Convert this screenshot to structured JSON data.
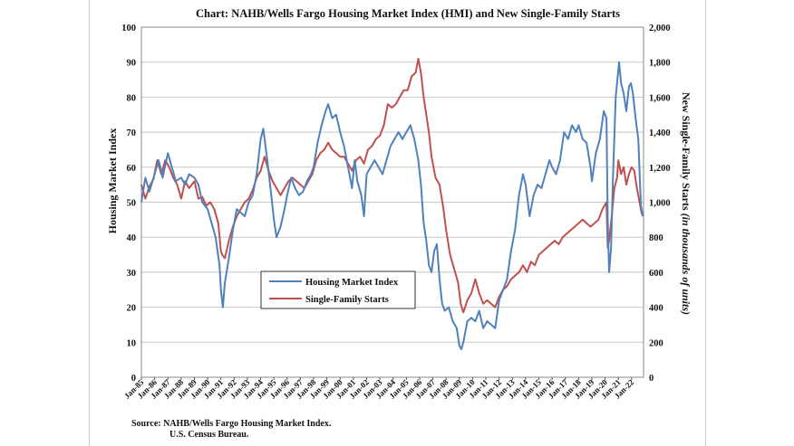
{
  "chart_data": {
    "type": "line",
    "title": "Chart:  NAHB/Wells Fargo Housing Market Index (HMI) and New Single-Family Starts",
    "ylabel_left": "Housing Market Index",
    "ylabel_right_main": "New Single-Family Starts ",
    "ylabel_right_italic": "(in thousands of units)",
    "ylim_left": [
      0,
      100
    ],
    "ylim_right": [
      0,
      2000
    ],
    "y_ticks_left": [
      "0",
      "10",
      "20",
      "30",
      "40",
      "50",
      "60",
      "70",
      "80",
      "90",
      "100"
    ],
    "y_ticks_right": [
      "0",
      "200",
      "400",
      "600",
      "800",
      "1,000",
      "1,200",
      "1,400",
      "1,600",
      "1,800",
      "2,000"
    ],
    "x_range": [
      1985,
      2022.9
    ],
    "x_ticks": [
      "Jan-85",
      "Jan-86",
      "Jan-87",
      "Jan-88",
      "Jan-89",
      "Jan-90",
      "Jan-91",
      "Jan-92",
      "Jan-93",
      "Jan-94",
      "Jan-95",
      "Jan-96",
      "Jan-97",
      "Jan-98",
      "Jan-99",
      "Jan-00",
      "Jan-01",
      "Jan-02",
      "Jan-03",
      "Jan-04",
      "Jan-05",
      "Jan-06",
      "Jan-07",
      "Jan-08",
      "Jan-09",
      "Jan-10",
      "Jan-11",
      "Jan-12",
      "Jan-13",
      "Jan-14",
      "Jan-15",
      "Jan-16",
      "Jan-17",
      "Jan-18",
      "Jan-19",
      "Jan-20",
      "Jan-21",
      "Jan-22"
    ],
    "grid": true,
    "legend_placement": "center",
    "series": [
      {
        "name": "Housing Market Index",
        "axis": "left",
        "color": "#4f81bd",
        "points": [
          [
            1985.0,
            50
          ],
          [
            1985.3,
            57
          ],
          [
            1985.6,
            53
          ],
          [
            1986.0,
            58
          ],
          [
            1986.3,
            62
          ],
          [
            1986.6,
            57
          ],
          [
            1987.0,
            64
          ],
          [
            1987.3,
            60
          ],
          [
            1987.6,
            56
          ],
          [
            1988.0,
            57
          ],
          [
            1988.3,
            55
          ],
          [
            1988.6,
            58
          ],
          [
            1989.0,
            57
          ],
          [
            1989.3,
            55
          ],
          [
            1989.6,
            50
          ],
          [
            1990.0,
            48
          ],
          [
            1990.3,
            44
          ],
          [
            1990.6,
            40
          ],
          [
            1990.9,
            32
          ],
          [
            1991.0,
            25
          ],
          [
            1991.15,
            20
          ],
          [
            1991.3,
            27
          ],
          [
            1991.6,
            34
          ],
          [
            1991.9,
            42
          ],
          [
            1992.2,
            48
          ],
          [
            1992.5,
            47
          ],
          [
            1992.8,
            46
          ],
          [
            1993.1,
            50
          ],
          [
            1993.4,
            52
          ],
          [
            1993.7,
            58
          ],
          [
            1994.0,
            68
          ],
          [
            1994.2,
            71
          ],
          [
            1994.5,
            62
          ],
          [
            1994.8,
            52
          ],
          [
            1995.0,
            45
          ],
          [
            1995.2,
            40
          ],
          [
            1995.5,
            43
          ],
          [
            1995.8,
            48
          ],
          [
            1996.0,
            52
          ],
          [
            1996.3,
            57
          ],
          [
            1996.6,
            54
          ],
          [
            1996.9,
            52
          ],
          [
            1997.2,
            53
          ],
          [
            1997.5,
            56
          ],
          [
            1997.8,
            58
          ],
          [
            1998.0,
            60
          ],
          [
            1998.3,
            67
          ],
          [
            1998.6,
            72
          ],
          [
            1998.9,
            76
          ],
          [
            1999.1,
            78
          ],
          [
            1999.4,
            74
          ],
          [
            1999.7,
            75
          ],
          [
            2000.0,
            70
          ],
          [
            2000.3,
            66
          ],
          [
            2000.6,
            60
          ],
          [
            2000.9,
            54
          ],
          [
            2001.1,
            62
          ],
          [
            2001.3,
            56
          ],
          [
            2001.6,
            52
          ],
          [
            2001.8,
            46
          ],
          [
            2002.0,
            58
          ],
          [
            2002.3,
            60
          ],
          [
            2002.6,
            62
          ],
          [
            2002.9,
            60
          ],
          [
            2003.2,
            58
          ],
          [
            2003.5,
            62
          ],
          [
            2003.8,
            66
          ],
          [
            2004.1,
            68
          ],
          [
            2004.4,
            70
          ],
          [
            2004.7,
            68
          ],
          [
            2005.0,
            70
          ],
          [
            2005.3,
            72
          ],
          [
            2005.6,
            68
          ],
          [
            2005.9,
            62
          ],
          [
            2006.1,
            55
          ],
          [
            2006.3,
            44
          ],
          [
            2006.5,
            39
          ],
          [
            2006.7,
            32
          ],
          [
            2006.9,
            30
          ],
          [
            2007.1,
            36
          ],
          [
            2007.3,
            38
          ],
          [
            2007.5,
            28
          ],
          [
            2007.7,
            21
          ],
          [
            2007.9,
            19
          ],
          [
            2008.2,
            20
          ],
          [
            2008.5,
            16
          ],
          [
            2008.8,
            14
          ],
          [
            2009.0,
            9
          ],
          [
            2009.15,
            8
          ],
          [
            2009.3,
            10
          ],
          [
            2009.6,
            16
          ],
          [
            2009.9,
            17
          ],
          [
            2010.2,
            16
          ],
          [
            2010.5,
            19
          ],
          [
            2010.8,
            14
          ],
          [
            2011.1,
            16
          ],
          [
            2011.4,
            15
          ],
          [
            2011.7,
            14
          ],
          [
            2012.0,
            22
          ],
          [
            2012.3,
            25
          ],
          [
            2012.6,
            28
          ],
          [
            2012.9,
            36
          ],
          [
            2013.2,
            42
          ],
          [
            2013.5,
            52
          ],
          [
            2013.8,
            58
          ],
          [
            2014.0,
            55
          ],
          [
            2014.3,
            46
          ],
          [
            2014.6,
            52
          ],
          [
            2014.9,
            55
          ],
          [
            2015.2,
            54
          ],
          [
            2015.5,
            58
          ],
          [
            2015.8,
            62
          ],
          [
            2016.0,
            60
          ],
          [
            2016.3,
            58
          ],
          [
            2016.6,
            62
          ],
          [
            2016.9,
            70
          ],
          [
            2017.2,
            68
          ],
          [
            2017.5,
            72
          ],
          [
            2017.8,
            70
          ],
          [
            2018.0,
            72
          ],
          [
            2018.3,
            68
          ],
          [
            2018.6,
            67
          ],
          [
            2018.9,
            60
          ],
          [
            2019.0,
            56
          ],
          [
            2019.3,
            64
          ],
          [
            2019.6,
            68
          ],
          [
            2019.9,
            76
          ],
          [
            2020.1,
            74
          ],
          [
            2020.2,
            45
          ],
          [
            2020.3,
            30
          ],
          [
            2020.45,
            37
          ],
          [
            2020.6,
            58
          ],
          [
            2020.8,
            80
          ],
          [
            2020.95,
            86
          ],
          [
            2021.05,
            90
          ],
          [
            2021.2,
            84
          ],
          [
            2021.4,
            81
          ],
          [
            2021.6,
            76
          ],
          [
            2021.8,
            83
          ],
          [
            2021.95,
            84
          ],
          [
            2022.1,
            81
          ],
          [
            2022.3,
            74
          ],
          [
            2022.5,
            68
          ],
          [
            2022.7,
            49
          ],
          [
            2022.85,
            46
          ]
        ]
      },
      {
        "name": "Single-Family Starts",
        "axis": "right",
        "color": "#c0504d",
        "points": [
          [
            1985.0,
            1100
          ],
          [
            1985.3,
            1020
          ],
          [
            1985.6,
            1090
          ],
          [
            1985.9,
            1130
          ],
          [
            1986.2,
            1240
          ],
          [
            1986.5,
            1160
          ],
          [
            1986.8,
            1240
          ],
          [
            1987.1,
            1200
          ],
          [
            1987.4,
            1140
          ],
          [
            1987.7,
            1100
          ],
          [
            1988.0,
            1020
          ],
          [
            1988.3,
            1120
          ],
          [
            1988.6,
            1080
          ],
          [
            1989.0,
            1120
          ],
          [
            1989.3,
            1020
          ],
          [
            1989.6,
            1030
          ],
          [
            1989.9,
            980
          ],
          [
            1990.2,
            1000
          ],
          [
            1990.5,
            960
          ],
          [
            1990.8,
            880
          ],
          [
            1991.0,
            720
          ],
          [
            1991.1,
            700
          ],
          [
            1991.3,
            680
          ],
          [
            1991.6,
            780
          ],
          [
            1991.9,
            860
          ],
          [
            1992.2,
            920
          ],
          [
            1992.5,
            960
          ],
          [
            1992.8,
            1000
          ],
          [
            1993.1,
            1020
          ],
          [
            1993.4,
            1070
          ],
          [
            1993.7,
            1140
          ],
          [
            1994.0,
            1180
          ],
          [
            1994.3,
            1260
          ],
          [
            1994.6,
            1180
          ],
          [
            1994.9,
            1120
          ],
          [
            1995.2,
            1080
          ],
          [
            1995.5,
            1040
          ],
          [
            1995.8,
            1080
          ],
          [
            1996.1,
            1120
          ],
          [
            1996.4,
            1140
          ],
          [
            1996.7,
            1120
          ],
          [
            1997.0,
            1100
          ],
          [
            1997.3,
            1080
          ],
          [
            1997.6,
            1120
          ],
          [
            1997.9,
            1160
          ],
          [
            1998.2,
            1240
          ],
          [
            1998.5,
            1280
          ],
          [
            1998.8,
            1300
          ],
          [
            1999.1,
            1340
          ],
          [
            1999.4,
            1300
          ],
          [
            1999.7,
            1280
          ],
          [
            2000.0,
            1260
          ],
          [
            2000.3,
            1260
          ],
          [
            2000.6,
            1220
          ],
          [
            2000.9,
            1180
          ],
          [
            2001.2,
            1240
          ],
          [
            2001.5,
            1260
          ],
          [
            2001.8,
            1220
          ],
          [
            2002.1,
            1300
          ],
          [
            2002.4,
            1320
          ],
          [
            2002.7,
            1360
          ],
          [
            2003.0,
            1380
          ],
          [
            2003.3,
            1440
          ],
          [
            2003.6,
            1560
          ],
          [
            2003.9,
            1540
          ],
          [
            2004.2,
            1560
          ],
          [
            2004.5,
            1600
          ],
          [
            2004.8,
            1640
          ],
          [
            2005.1,
            1640
          ],
          [
            2005.4,
            1720
          ],
          [
            2005.7,
            1740
          ],
          [
            2005.9,
            1820
          ],
          [
            2006.1,
            1740
          ],
          [
            2006.3,
            1600
          ],
          [
            2006.5,
            1500
          ],
          [
            2006.7,
            1400
          ],
          [
            2006.9,
            1260
          ],
          [
            2007.2,
            1140
          ],
          [
            2007.5,
            1100
          ],
          [
            2007.8,
            960
          ],
          [
            2008.0,
            840
          ],
          [
            2008.3,
            700
          ],
          [
            2008.6,
            620
          ],
          [
            2008.9,
            540
          ],
          [
            2009.1,
            420
          ],
          [
            2009.3,
            370
          ],
          [
            2009.6,
            440
          ],
          [
            2009.9,
            480
          ],
          [
            2010.2,
            560
          ],
          [
            2010.5,
            480
          ],
          [
            2010.8,
            420
          ],
          [
            2011.1,
            440
          ],
          [
            2011.4,
            420
          ],
          [
            2011.7,
            400
          ],
          [
            2012.0,
            460
          ],
          [
            2012.3,
            500
          ],
          [
            2012.6,
            520
          ],
          [
            2012.9,
            560
          ],
          [
            2013.2,
            580
          ],
          [
            2013.5,
            600
          ],
          [
            2013.8,
            640
          ],
          [
            2014.1,
            600
          ],
          [
            2014.4,
            660
          ],
          [
            2014.7,
            640
          ],
          [
            2015.0,
            700
          ],
          [
            2015.3,
            720
          ],
          [
            2015.6,
            740
          ],
          [
            2015.9,
            760
          ],
          [
            2016.2,
            780
          ],
          [
            2016.5,
            760
          ],
          [
            2016.8,
            800
          ],
          [
            2017.1,
            820
          ],
          [
            2017.4,
            840
          ],
          [
            2017.7,
            860
          ],
          [
            2018.0,
            880
          ],
          [
            2018.3,
            900
          ],
          [
            2018.6,
            880
          ],
          [
            2018.9,
            860
          ],
          [
            2019.2,
            880
          ],
          [
            2019.5,
            900
          ],
          [
            2019.8,
            960
          ],
          [
            2020.1,
            1000
          ],
          [
            2020.2,
            740
          ],
          [
            2020.3,
            780
          ],
          [
            2020.5,
            920
          ],
          [
            2020.7,
            1080
          ],
          [
            2020.9,
            1140
          ],
          [
            2021.0,
            1240
          ],
          [
            2021.2,
            1160
          ],
          [
            2021.4,
            1200
          ],
          [
            2021.6,
            1100
          ],
          [
            2021.8,
            1160
          ],
          [
            2022.0,
            1200
          ],
          [
            2022.2,
            1180
          ],
          [
            2022.4,
            1080
          ],
          [
            2022.6,
            1000
          ],
          [
            2022.75,
            940
          ],
          [
            2022.85,
            920
          ]
        ]
      }
    ]
  },
  "footer": {
    "source_line1": "Source: NAHB/Wells Fargo Housing Market Index.",
    "source_line2": "U.S. Census Bureau."
  }
}
